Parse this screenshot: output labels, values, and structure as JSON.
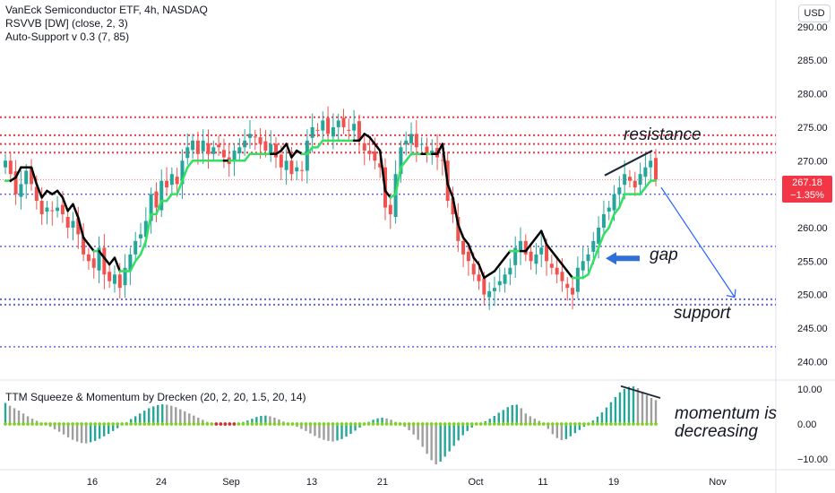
{
  "legend": {
    "title": "VanEck Semiconductor ETF, 4h, NASDAQ",
    "indicator1": "RSVVB [DW] (close, 2, 3)",
    "indicator2": "Auto-Support v 0.3 (7, 85)"
  },
  "currency_button": "USD",
  "last_price": {
    "value": "267.18",
    "change": "−1.35%"
  },
  "annotations": {
    "resistance": "resistance",
    "gap": "gap",
    "support": "support",
    "momentum": [
      "momentum is",
      "decreasing"
    ]
  },
  "oscillator": {
    "title": "TTM Squeeze & Momentum by Drecken (20, 2, 20, 1.5, 20, 14)",
    "yticks": [
      "10.00",
      "0.00",
      "−10.00"
    ]
  },
  "colors": {
    "bull": "#26a69a",
    "bear": "#ef5350",
    "trend_up": "#33e062",
    "trend_down": "#000000",
    "resistance_line": "#f23645",
    "support_line": "#3c3cd6",
    "arrow": "#2962ff",
    "gray_hist": "#9e9e9e"
  },
  "chart_data": [
    {
      "type": "candlestick",
      "title": "VanEck Semiconductor ETF, 4h, NASDAQ",
      "x_ticks": [
        "16",
        "24",
        "Sep",
        "13",
        "21",
        "Oct",
        "11",
        "19",
        "Nov"
      ],
      "y_ticks": [
        290,
        285,
        280,
        275,
        270,
        265,
        260,
        255,
        250,
        245,
        240
      ],
      "ylim": [
        237.5,
        294
      ],
      "last_price": 267.18,
      "change_pct": -1.35,
      "close": [
        270,
        268,
        265,
        266.5,
        268.5,
        266.5,
        264,
        262,
        263,
        262.5,
        263,
        262,
        260,
        261,
        259,
        256,
        255,
        254,
        257,
        253,
        252,
        253,
        251,
        254,
        256,
        258,
        259,
        261,
        265,
        263,
        267,
        266,
        268,
        266.5,
        270,
        272,
        273,
        271,
        273,
        271,
        272,
        272,
        270.5,
        269.5,
        271.5,
        272,
        273,
        274,
        273.5,
        272.5,
        271.5,
        272.5,
        270.5,
        269,
        270,
        268,
        269,
        268.5,
        273,
        275,
        274.5,
        276,
        274,
        275,
        276,
        275,
        274.5,
        275.5,
        273,
        271.5,
        271,
        270,
        269,
        263,
        262,
        268,
        272,
        273,
        274,
        272,
        272.5,
        271,
        271.5,
        270.5,
        270,
        264,
        262,
        258,
        256,
        255,
        253,
        252,
        250,
        250.5,
        251,
        252,
        253,
        254,
        257,
        258,
        256,
        255,
        256,
        257,
        255,
        254,
        253,
        252,
        251,
        250,
        254,
        255,
        256,
        258,
        260,
        262,
        263,
        265,
        266,
        268,
        267,
        266,
        268,
        269,
        270,
        267.18
      ],
      "line_levels": {
        "resistance": [
          276.5,
          273.8,
          272.5,
          271.2
        ],
        "support": [
          265,
          257.2,
          249.3,
          248.5,
          242.2
        ]
      }
    },
    {
      "type": "bar",
      "title": "TTM Squeeze & Momentum by Drecken (20, 2, 20, 1.5, 20, 14)",
      "y_ticks": [
        10,
        0,
        -10
      ],
      "ylim": [
        -12.5,
        12
      ],
      "values": [
        6,
        5.2,
        4.5,
        3.8,
        3,
        2.2,
        1.5,
        0.9,
        0.4,
        -0.2,
        -0.8,
        -1.5,
        -2.2,
        -3,
        -3.8,
        -4.5,
        -5,
        -5.4,
        -5.5,
        -5.2,
        -4.8,
        -4.2,
        -3.5,
        -2.8,
        -2,
        -1.2,
        -0.4,
        0.5,
        1.4,
        2.2,
        3,
        3.8,
        4.5,
        5,
        5.4,
        5.6,
        5.5,
        5.2,
        4.8,
        4.2,
        3.6,
        3,
        2.4,
        1.8,
        1.2,
        0.6,
        0.2,
        -0.2,
        -0.4,
        -0.5,
        -0.3,
        0,
        0.3,
        0.6,
        1,
        1.5,
        2,
        2.3,
        2.4,
        2.2,
        1.8,
        1.3,
        0.7,
        0.2,
        -0.3,
        -0.8,
        -1.4,
        -2,
        -2.7,
        -3.4,
        -4,
        -4.5,
        -4.8,
        -5,
        -4.7,
        -4.3,
        -3.6,
        -2.8,
        -1.9,
        -1,
        -0.2,
        0.6,
        1.2,
        1.6,
        1.8,
        1.6,
        1.2,
        0.6,
        0,
        -0.8,
        -1.8,
        -3,
        -4.5,
        -6.5,
        -8.5,
        -10.3,
        -11.5,
        -10.7,
        -9.3,
        -7.8,
        -6.2,
        -4.7,
        -3.2,
        -2,
        -1,
        -0.3,
        0.3,
        0.8,
        1.5,
        2.3,
        3.2,
        4,
        4.8,
        5.4,
        5.5,
        4.5,
        3,
        2.2,
        1.5,
        0.9,
        0.3,
        -1.4,
        -2.9,
        -4,
        -4.6,
        -4.3,
        -3.5,
        -2.6,
        -1.7,
        -0.8,
        0.1,
        1,
        2.1,
        3.3,
        4.7,
        6.2,
        7.7,
        9,
        10,
        10.6,
        10.7,
        10.2,
        9.2,
        8.2,
        7.4,
        6.8
      ]
    }
  ]
}
